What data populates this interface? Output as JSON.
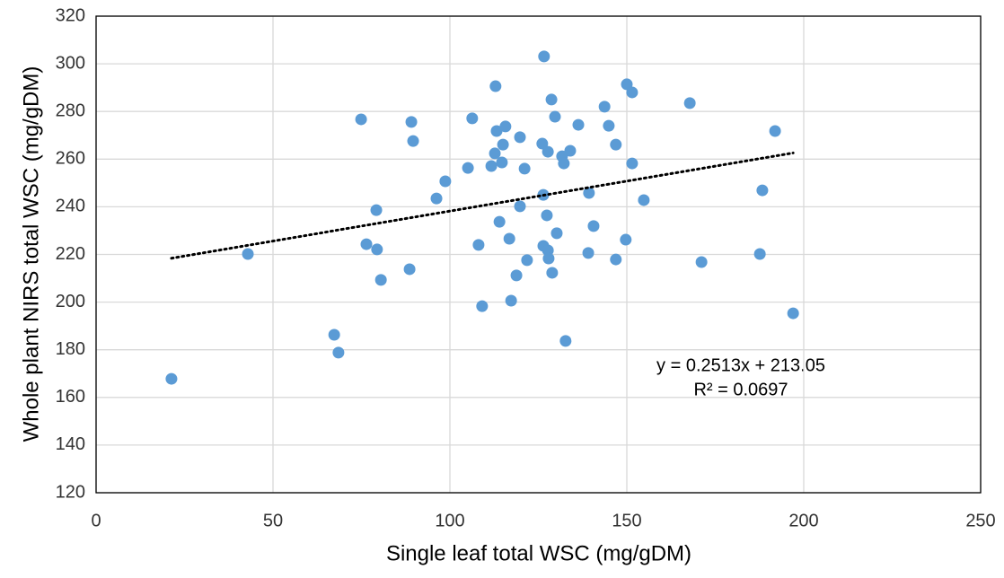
{
  "chart_data": {
    "type": "scatter",
    "x_label": "Single leaf total WSC (mg/gDM)",
    "y_label": "Whole plant NIRS total WSC (mg/gDM)",
    "x": [
      21.3,
      42.9,
      67.3,
      68.5,
      74.9,
      76.4,
      79.2,
      79.4,
      80.5,
      88.6,
      89.1,
      89.6,
      96.2,
      98.7,
      105.1,
      106.3,
      108.1,
      109.1,
      111.7,
      112.7,
      112.9,
      113.2,
      114.0,
      114.7,
      115.0,
      115.7,
      116.8,
      117.3,
      118.8,
      119.8,
      119.8,
      121.1,
      121.8,
      126.1,
      126.4,
      126.4,
      126.6,
      127.4,
      127.7,
      127.7,
      127.9,
      128.7,
      128.9,
      129.7,
      130.2,
      131.7,
      132.2,
      132.7,
      134.0,
      136.3,
      139.1,
      139.3,
      140.6,
      143.7,
      144.9,
      146.9,
      146.9,
      149.7,
      150.0,
      151.5,
      151.5,
      154.8,
      167.8,
      171.1,
      187.6,
      188.3,
      191.9,
      197.0
    ],
    "values": [
      167.8,
      220.2,
      186.3,
      178.8,
      276.7,
      224.3,
      238.6,
      222.1,
      209.3,
      213.8,
      275.6,
      267.6,
      243.5,
      250.7,
      256.3,
      277.1,
      224.0,
      198.3,
      257.1,
      262.4,
      290.6,
      271.8,
      233.7,
      258.6,
      266.1,
      273.7,
      226.6,
      200.6,
      211.2,
      269.2,
      240.2,
      256.0,
      217.6,
      266.5,
      245.0,
      223.6,
      303.1,
      236.4,
      221.7,
      263.1,
      218.3,
      285.0,
      212.3,
      277.8,
      228.9,
      261.2,
      258.2,
      183.7,
      263.5,
      274.4,
      220.6,
      245.8,
      231.9,
      282.0,
      274.0,
      266.1,
      217.9,
      226.2,
      291.4,
      288.0,
      258.2,
      242.8,
      283.5,
      216.8,
      220.2,
      246.9,
      271.8,
      195.3
    ],
    "color": "#5b9bd5",
    "trendline": {
      "x": [
        21.3,
        197.0
      ],
      "values": [
        218.4,
        262.6
      ],
      "color": "#000000"
    },
    "annotations": [
      "y = 0.2513x + 213.05",
      "R² = 0.0697"
    ],
    "xlim": [
      0,
      250
    ],
    "xticks": [
      0,
      50,
      100,
      150,
      200,
      250
    ],
    "ylim": [
      120,
      320
    ],
    "yticks": [
      120,
      140,
      160,
      180,
      200,
      220,
      240,
      260,
      280,
      300,
      320
    ],
    "grid": true
  }
}
